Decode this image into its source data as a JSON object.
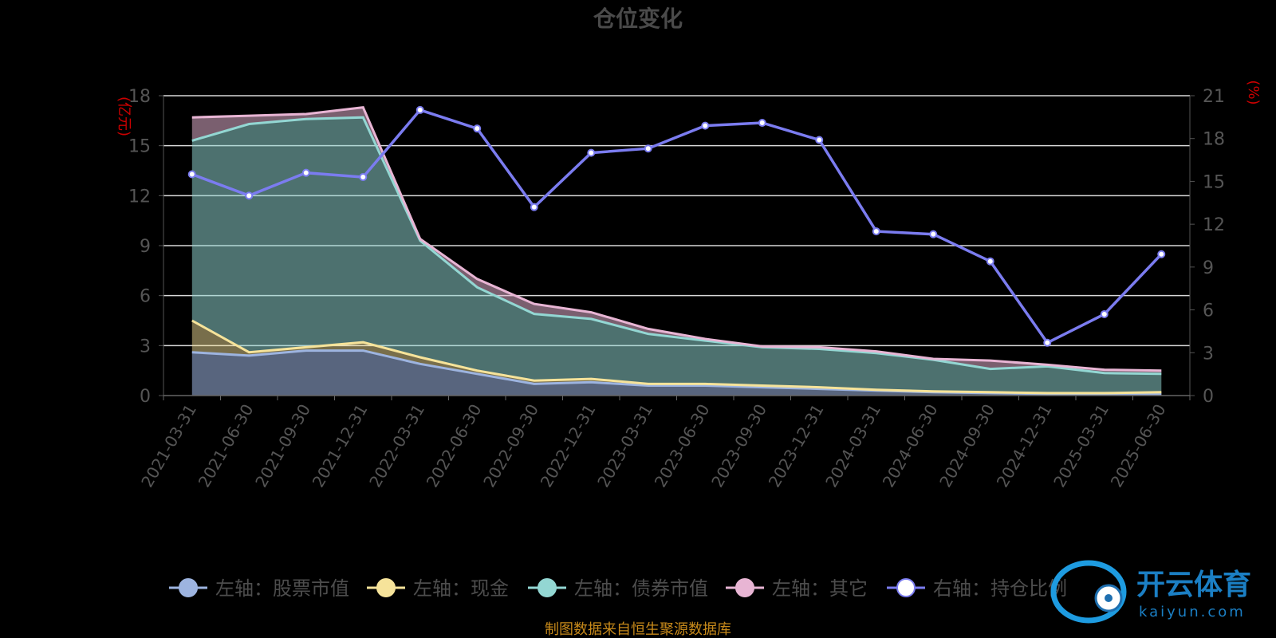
{
  "chart_data": {
    "type": "area",
    "title": "仓位变化",
    "left_unit": "(亿元)",
    "right_unit": "(%)",
    "categories": [
      "2021-03-31",
      "2021-06-30",
      "2021-09-30",
      "2021-12-31",
      "2022-03-31",
      "2022-06-30",
      "2022-09-30",
      "2022-12-31",
      "2023-03-31",
      "2023-06-30",
      "2023-09-30",
      "2023-12-31",
      "2024-03-31",
      "2024-06-30",
      "2024-09-30",
      "2024-12-31",
      "2025-03-31",
      "2025-06-30"
    ],
    "left_ylim": [
      0,
      18
    ],
    "left_ticks": [
      0,
      3,
      6,
      9,
      12,
      15,
      18
    ],
    "right_ylim": [
      0,
      21
    ],
    "right_ticks": [
      0,
      3,
      6,
      9,
      12,
      15,
      18,
      21
    ],
    "grid": true,
    "legend_position": "bottom",
    "series": [
      {
        "name": "左轴：股票市值",
        "axis": "left",
        "color": "#9db4e0",
        "values": [
          2.6,
          2.4,
          2.7,
          2.7,
          1.9,
          1.3,
          0.7,
          0.8,
          0.6,
          0.6,
          0.5,
          0.4,
          0.3,
          0.2,
          0.15,
          0.1,
          0.1,
          0.1
        ]
      },
      {
        "name": "左轴：现金",
        "axis": "left",
        "color": "#f6e39a",
        "values": [
          1.9,
          0.2,
          0.2,
          0.5,
          0.4,
          0.2,
          0.2,
          0.2,
          0.1,
          0.1,
          0.1,
          0.1,
          0.05,
          0.05,
          0.05,
          0.05,
          0.05,
          0.1
        ]
      },
      {
        "name": "左轴：债券市值",
        "axis": "left",
        "color": "#93d7d3",
        "values": [
          10.8,
          13.7,
          13.7,
          13.5,
          7.0,
          5.0,
          4.0,
          3.6,
          3.0,
          2.6,
          2.3,
          2.3,
          2.2,
          1.9,
          1.4,
          1.6,
          1.2,
          1.1
        ]
      },
      {
        "name": "左轴：其它",
        "axis": "left",
        "color": "#e8b5d4",
        "values": [
          1.4,
          0.5,
          0.3,
          0.6,
          0.1,
          0.5,
          0.6,
          0.4,
          0.3,
          0.1,
          0.05,
          0.1,
          0.1,
          0.05,
          0.5,
          0.1,
          0.2,
          0.2
        ]
      },
      {
        "name": "右轴：持仓比例",
        "axis": "right",
        "color": "#7b7cf0",
        "values": [
          15.5,
          14.0,
          15.6,
          15.3,
          20.0,
          18.7,
          13.2,
          17.0,
          17.3,
          18.9,
          19.1,
          17.9,
          11.5,
          11.3,
          9.4,
          3.7,
          5.7,
          9.9
        ]
      }
    ],
    "source": "制图数据来自恒生聚源数据库"
  },
  "watermark": {
    "text": "开云体育",
    "sub": "kaiyun.com"
  }
}
